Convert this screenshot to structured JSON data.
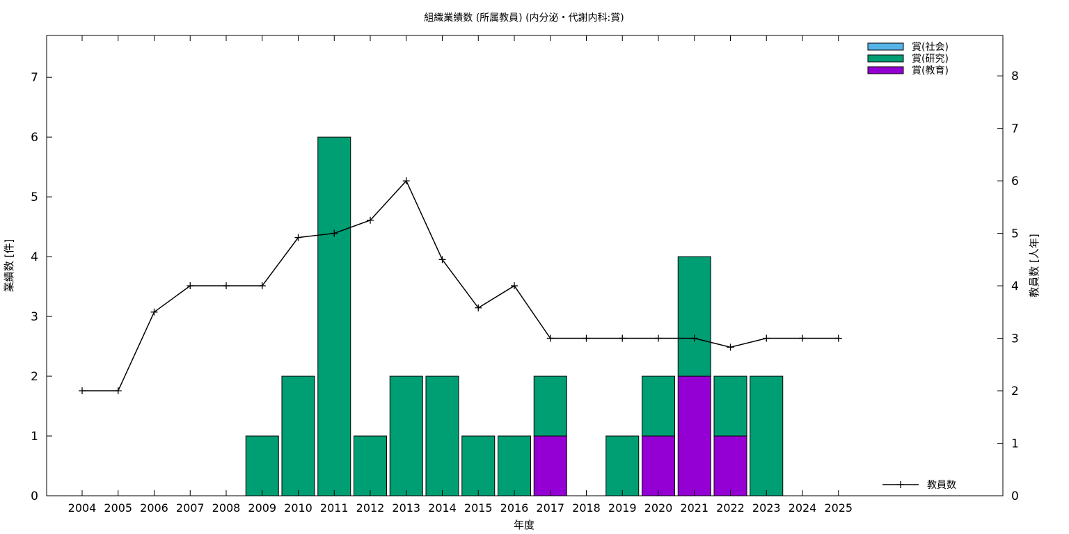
{
  "chart_data": {
    "type": "bar",
    "title": "組織業績数 (所属教員) (内分泌・代謝内科:賞)",
    "xlabel": "年度",
    "ylabel": "業績数 [件]",
    "y2label": "教員数 [人年]",
    "categories": [
      "2004",
      "2005",
      "2006",
      "2007",
      "2008",
      "2009",
      "2010",
      "2011",
      "2012",
      "2013",
      "2014",
      "2015",
      "2016",
      "2017",
      "2018",
      "2019",
      "2020",
      "2021",
      "2022",
      "2023",
      "2024",
      "2025"
    ],
    "ylim": [
      0,
      7.7
    ],
    "y2lim": [
      0,
      8.77
    ],
    "yticks": [
      0,
      1,
      2,
      3,
      4,
      5,
      6,
      7
    ],
    "y2ticks": [
      0,
      1,
      2,
      3,
      4,
      5,
      6,
      7,
      8
    ],
    "stacked": true,
    "series": [
      {
        "name": "賞(教育)",
        "color": "#9400d3",
        "values": [
          0,
          0,
          0,
          0,
          0,
          0,
          0,
          0,
          0,
          0,
          0,
          0,
          0,
          1,
          0,
          0,
          1,
          2,
          1,
          0,
          0,
          0
        ]
      },
      {
        "name": "賞(研究)",
        "color": "#009e73",
        "values": [
          0,
          0,
          0,
          0,
          0,
          1,
          2,
          6,
          1,
          2,
          2,
          1,
          1,
          1,
          0,
          1,
          1,
          2,
          1,
          2,
          0,
          0
        ]
      },
      {
        "name": "賞(社会)",
        "color": "#56b4e9",
        "values": [
          0,
          0,
          0,
          0,
          0,
          0,
          0,
          0,
          0,
          0,
          0,
          0,
          0,
          0,
          0,
          0,
          0,
          0,
          0,
          0,
          0,
          0
        ]
      }
    ],
    "legend_order": [
      "賞(社会)",
      "賞(研究)",
      "賞(教育)"
    ],
    "legend_position": "top-right",
    "line_series": {
      "name": "教員数",
      "axis": "y2",
      "color": "#000000",
      "values": [
        2,
        2,
        3.5,
        4,
        4,
        4,
        4.92,
        5,
        5.25,
        6,
        4.5,
        3.58,
        4,
        3,
        3,
        3,
        3,
        3,
        2.83,
        3,
        3,
        3
      ]
    },
    "line_legend_position": "bottom-right",
    "grid": false
  }
}
